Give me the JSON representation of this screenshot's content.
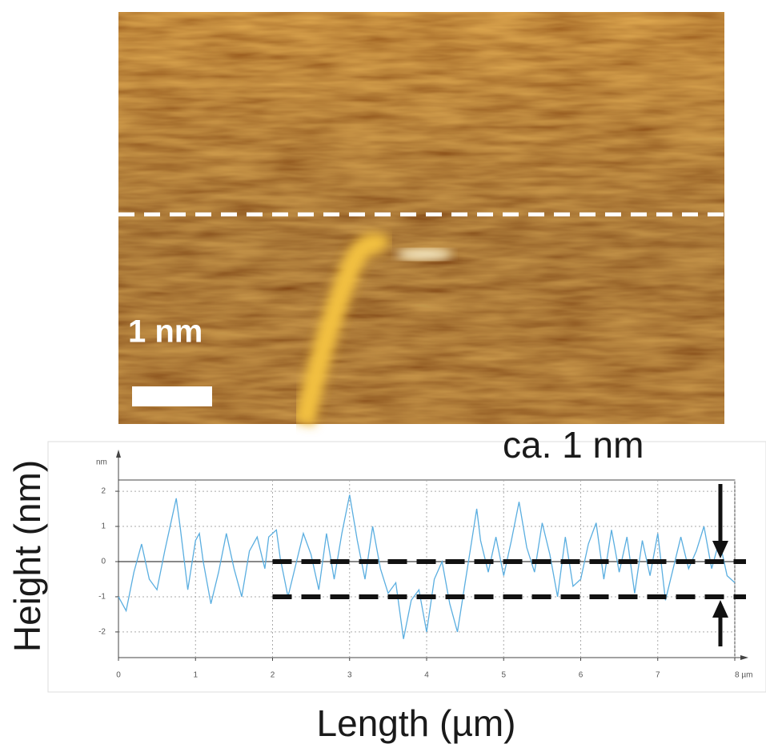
{
  "chart_data": {
    "type": "line",
    "scale_bar_label": "1 nm",
    "annotation": "ca. 1 nm",
    "y_label": "Height (nm)",
    "x_label": "Length (µm)",
    "y_unit": "nm",
    "x": [
      0,
      0.1,
      0.2,
      0.3,
      0.4,
      0.5,
      0.6,
      0.7,
      0.75,
      0.8,
      0.9,
      1.0,
      1.05,
      1.1,
      1.2,
      1.3,
      1.4,
      1.5,
      1.6,
      1.7,
      1.8,
      1.9,
      1.95,
      2.05,
      2.1,
      2.2,
      2.3,
      2.4,
      2.5,
      2.6,
      2.7,
      2.8,
      2.9,
      3.0,
      3.1,
      3.2,
      3.3,
      3.4,
      3.5,
      3.6,
      3.7,
      3.8,
      3.9,
      4.0,
      4.1,
      4.2,
      4.3,
      4.4,
      4.5,
      4.6,
      4.65,
      4.7,
      4.8,
      4.9,
      5.0,
      5.1,
      5.2,
      5.3,
      5.4,
      5.5,
      5.6,
      5.7,
      5.8,
      5.9,
      6.0,
      6.1,
      6.2,
      6.3,
      6.4,
      6.5,
      6.6,
      6.7,
      6.8,
      6.9,
      7.0,
      7.1,
      7.2,
      7.3,
      7.4,
      7.5,
      7.6,
      7.7,
      7.8,
      7.9,
      8.0
    ],
    "series": [
      {
        "color": "#5aaee0",
        "values": [
          -1.0,
          -1.4,
          -0.3,
          0.5,
          -0.5,
          -0.8,
          0.3,
          1.3,
          1.8,
          1.0,
          -0.8,
          0.6,
          0.8,
          0.0,
          -1.2,
          -0.3,
          0.8,
          -0.2,
          -1.0,
          0.3,
          0.7,
          -0.2,
          0.7,
          0.9,
          0.1,
          -1.0,
          -0.1,
          0.8,
          0.2,
          -0.8,
          0.8,
          -0.5,
          0.8,
          1.9,
          0.6,
          -0.5,
          1.0,
          -0.2,
          -0.9,
          -0.6,
          -2.2,
          -1.1,
          -0.8,
          -2.0,
          -0.5,
          0.0,
          -1.2,
          -2.0,
          -0.6,
          0.8,
          1.5,
          0.6,
          -0.3,
          0.7,
          -0.4,
          0.6,
          1.7,
          0.4,
          -0.3,
          1.1,
          0.2,
          -1.0,
          0.7,
          -0.7,
          -0.5,
          0.5,
          1.1,
          -0.5,
          0.9,
          -0.3,
          0.7,
          -0.9,
          0.6,
          -0.4,
          0.8,
          -1.1,
          -0.2,
          0.7,
          -0.2,
          0.3,
          1.0,
          -0.2,
          0.6,
          -0.4,
          -0.6
        ]
      }
    ],
    "reference_lines": [
      0,
      -1
    ],
    "xlim": [
      0,
      8
    ],
    "ylim": [
      -2.73,
      2.32
    ],
    "xticks": [
      0,
      1,
      2,
      3,
      4,
      5,
      6,
      7,
      {
        "value": 8,
        "label": "8 µm"
      }
    ],
    "yticks": [
      -2,
      -1,
      0,
      1,
      2
    ],
    "grid": true
  }
}
